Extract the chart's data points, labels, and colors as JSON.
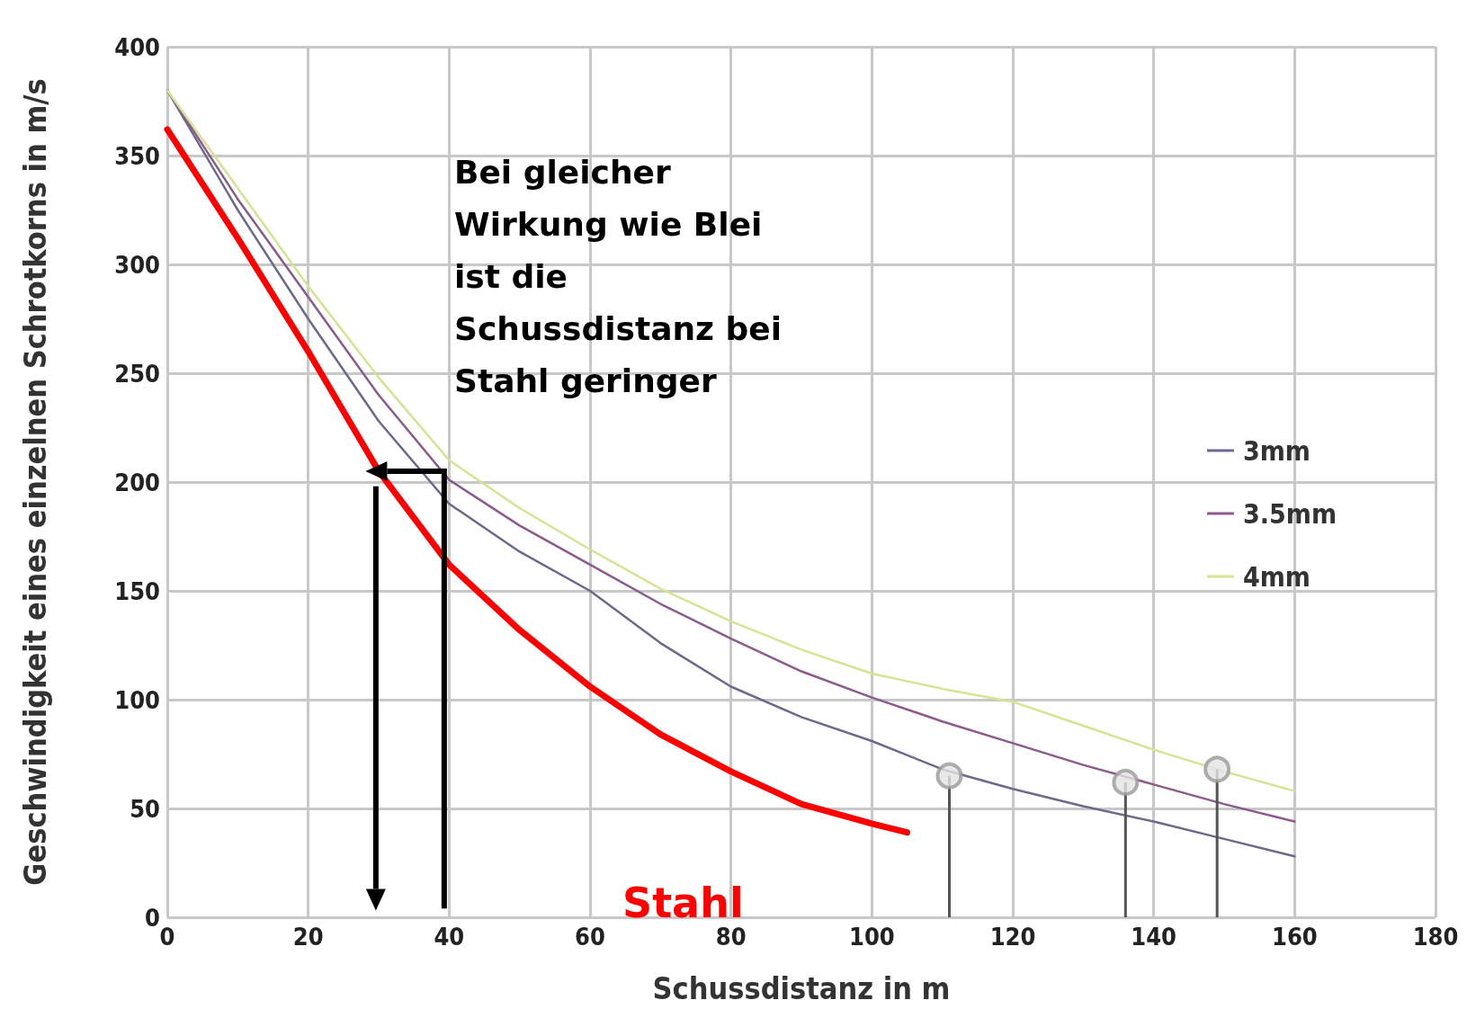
{
  "chart_data": {
    "type": "line",
    "xlabel": "Schussdistanz in m",
    "ylabel": "Geschwindigkeit eines einzelnen Schrotkorns in m/s",
    "xlim": [
      0,
      180
    ],
    "xticks": [
      0,
      20,
      40,
      60,
      80,
      100,
      120,
      140,
      160,
      180
    ],
    "ylim": [
      0,
      400
    ],
    "yticks": [
      0,
      50,
      100,
      150,
      200,
      250,
      300,
      350,
      400
    ],
    "grid": true,
    "legend": "right",
    "line_style": "solid",
    "series": [
      {
        "name": "3mm",
        "color": "#6a6a8c",
        "x": [
          0,
          10,
          20,
          30,
          40,
          50,
          60,
          70,
          80,
          90,
          100,
          110,
          120,
          130,
          140,
          150,
          160
        ],
        "values": [
          380,
          325,
          275,
          228,
          190,
          168,
          150,
          126,
          106,
          92,
          81,
          68,
          59,
          51,
          44,
          36,
          28
        ]
      },
      {
        "name": "3.5mm",
        "color": "#8c5a8c",
        "x": [
          0,
          10,
          20,
          30,
          40,
          50,
          60,
          70,
          80,
          90,
          100,
          110,
          120,
          130,
          140,
          150,
          160
        ],
        "values": [
          380,
          330,
          285,
          240,
          201,
          180,
          162,
          144,
          128,
          113,
          101,
          90,
          80,
          70,
          61,
          52,
          44
        ]
      },
      {
        "name": "4mm",
        "color": "#d4e491",
        "x": [
          0,
          10,
          20,
          30,
          40,
          50,
          60,
          70,
          80,
          90,
          100,
          110,
          120,
          130,
          140,
          150,
          160
        ],
        "values": [
          380,
          335,
          290,
          248,
          210,
          188,
          169,
          151,
          136,
          123,
          112,
          105,
          99,
          88,
          77,
          67,
          58
        ]
      },
      {
        "color": "#ff0000",
        "x": [
          0,
          10,
          20,
          30,
          40,
          50,
          60,
          70,
          80,
          90,
          100,
          105
        ],
        "values": [
          362,
          312,
          260,
          205,
          162,
          132,
          106,
          84,
          67,
          52,
          43,
          39
        ]
      },
      {
        "type": "scatter",
        "marker": "circle",
        "color": "#9a9a9a",
        "x": [
          111,
          136,
          149
        ],
        "values": [
          65,
          62,
          68
        ],
        "errors": [
          [
            0,
            65
          ],
          [
            0,
            62
          ],
          [
            0,
            68
          ]
        ]
      }
    ],
    "annotations": [
      "Bei gleicher\nWirkung wie Blei\nist die\nSchussdistanz bei\nStahl geringer",
      "Stahl"
    ]
  }
}
